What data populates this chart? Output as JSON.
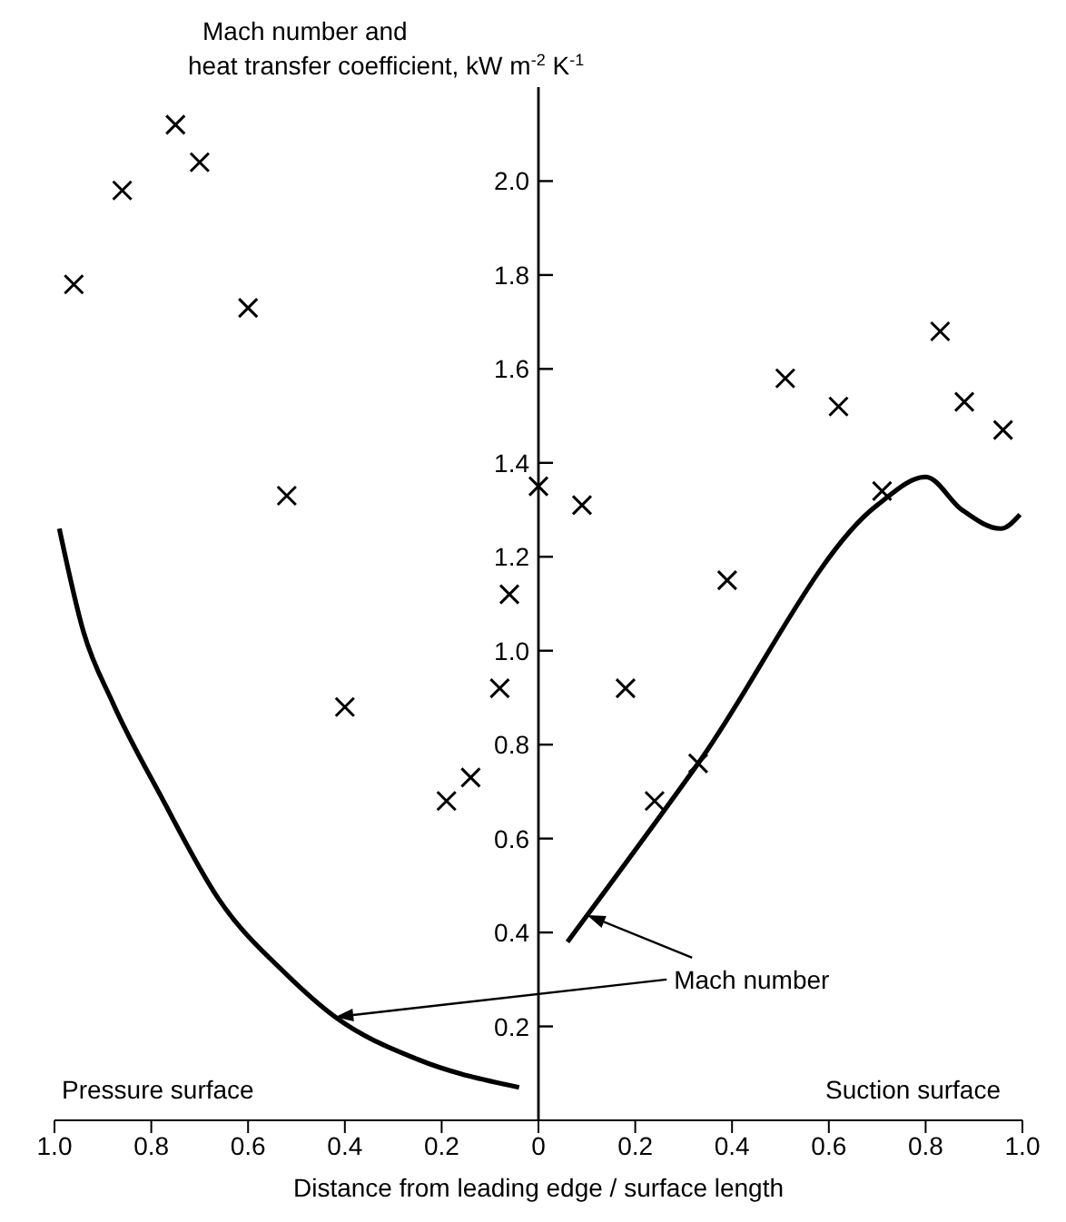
{
  "chart_data": {
    "type": "scatter",
    "ylabel": "Mach number and heat transfer coefficient, kW m$^{-2}$ K$^{-1}$",
    "xlabel": "Distance from leading edge / surface length",
    "annotations": [
      "Pressure surface",
      "Suction surface",
      "Mach number"
    ],
    "xlim": [
      -1,
      1
    ],
    "xticks": [
      {
        "value": -1,
        "label": "1.0"
      },
      {
        "value": -0.8,
        "label": "0.8"
      },
      {
        "value": -0.6,
        "label": "0.6"
      },
      {
        "value": -0.4,
        "label": "0.4"
      },
      {
        "value": -0.2,
        "label": "0.2"
      },
      0,
      0.2,
      0.4,
      0.6,
      0.8,
      {
        "value": 1,
        "label": "1.0"
      }
    ],
    "ylim": [
      0,
      2.2
    ],
    "yticks": [
      0.2,
      0.4,
      0.6,
      0.8,
      {
        "value": 1,
        "label": "1.0"
      },
      1.2,
      1.4,
      1.6,
      1.8,
      {
        "value": 2,
        "label": "2.0"
      }
    ],
    "series": [
      {
        "marker": "cross",
        "color": "#000000",
        "x": [
          -0.96,
          -0.86,
          -0.75,
          -0.7,
          -0.6,
          -0.52,
          -0.4,
          -0.19,
          -0.14,
          -0.08,
          -0.06,
          0.0,
          0.09,
          0.18,
          0.24,
          0.33,
          0.39,
          0.51,
          0.62,
          0.71,
          0.83,
          0.88,
          0.96
        ],
        "values": [
          1.78,
          1.98,
          2.12,
          2.04,
          1.73,
          1.33,
          0.88,
          0.68,
          0.73,
          0.92,
          1.12,
          1.35,
          1.31,
          0.92,
          0.68,
          0.76,
          1.15,
          1.58,
          1.52,
          1.34,
          1.68,
          1.53,
          1.47
        ]
      },
      {
        "type": "line",
        "color": "#000000",
        "x": [
          -0.99,
          -0.94,
          -0.88,
          -0.78,
          -0.66,
          -0.52,
          -0.42,
          -0.25,
          -0.04
        ],
        "values": [
          1.26,
          1.04,
          0.89,
          0.69,
          0.47,
          0.31,
          0.22,
          0.13,
          0.07
        ]
      },
      {
        "type": "line",
        "color": "#000000",
        "x": [
          0.06,
          0.33,
          0.7,
          0.8,
          0.875,
          0.955,
          0.995
        ],
        "values": [
          0.38,
          0.76,
          1.31,
          1.37,
          1.3,
          1.26,
          1.29
        ]
      }
    ]
  }
}
